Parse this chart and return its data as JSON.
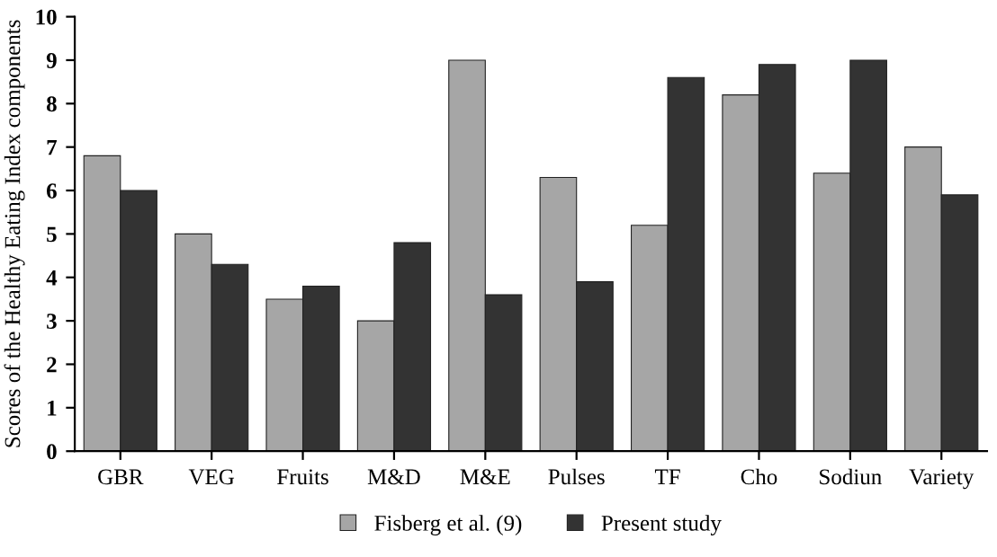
{
  "chart_data": {
    "type": "bar",
    "ylabel": "Scores of the Healthy Eating Index components",
    "categories": [
      "GBR",
      "VEG",
      "Fruits",
      "M&D",
      "M&E",
      "Pulses",
      "TF",
      "Cho",
      "Sodiun",
      "Variety"
    ],
    "series": [
      {
        "name": "Fisberg et al. (9)",
        "color": "#a6a6a6",
        "values": [
          6.8,
          5.0,
          3.5,
          3.0,
          9.0,
          6.3,
          5.2,
          8.2,
          6.4,
          7.0
        ]
      },
      {
        "name": "Present study",
        "color": "#333333",
        "values": [
          6.0,
          4.3,
          3.8,
          4.8,
          3.6,
          3.9,
          8.6,
          8.9,
          9.0,
          5.9
        ]
      }
    ],
    "ylim": [
      0,
      10
    ],
    "yticks": [
      0,
      1,
      2,
      3,
      4,
      5,
      6,
      7,
      8,
      9,
      10
    ],
    "grid": false,
    "legend": "bottom"
  }
}
